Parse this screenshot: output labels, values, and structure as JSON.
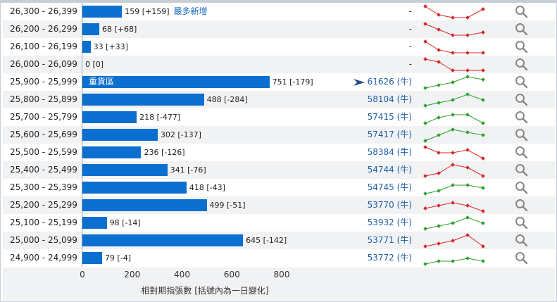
{
  "colors": {
    "bar": "#0b6fcf",
    "up": "#2ca02c",
    "down": "#d62728",
    "strike_link": "#1f5fa6"
  },
  "chart_data": {
    "type": "bar",
    "orientation": "horizontal",
    "categories": [
      "26,300 - 26,399",
      "26,200 - 26,299",
      "26,100 - 26,199",
      "26,000 - 26,099",
      "25,900 - 25,999",
      "25,800 - 25,899",
      "25,700 - 25,799",
      "25,600 - 25,699",
      "25,500 - 25,599",
      "25,400 - 25,499",
      "25,300 - 25,399",
      "25,200 - 25,299",
      "25,100 - 25,199",
      "25,000 - 25,099",
      "24,900 - 24,999"
    ],
    "values": [
      159,
      68,
      33,
      0,
      751,
      488,
      218,
      302,
      236,
      341,
      418,
      499,
      98,
      645,
      79
    ],
    "value_labels": [
      "159 [+159]",
      "68 [+68]",
      "33 [+33]",
      "0 [0]",
      "751 [-179]",
      "488 [-284]",
      "218 [-477]",
      "302 [-137]",
      "236 [-126]",
      "341 [-76]",
      "418 [-43]",
      "499 [-51]",
      "98 [-14]",
      "645 [-142]",
      "79 [-4]"
    ],
    "annotations": {
      "row0_note": "最多新增",
      "row4_inbar": "重貨區"
    },
    "strikes": [
      "-",
      "-",
      "-",
      "-",
      "61626 (牛)",
      "58104 (牛)",
      "57415 (牛)",
      "57417 (牛)",
      "58384 (牛)",
      "54744 (牛)",
      "54745 (牛)",
      "53770 (牛)",
      "53932 (牛)",
      "53771 (牛)",
      "53772 (牛)"
    ],
    "sparklines": [
      {
        "values": [
          5,
          2,
          1,
          1,
          4
        ],
        "color": "down"
      },
      {
        "values": [
          5,
          3,
          1,
          1,
          2
        ],
        "color": "down"
      },
      {
        "values": [
          5,
          2,
          1,
          1,
          1
        ],
        "color": "down"
      },
      {
        "values": [
          5,
          4,
          1,
          1,
          1
        ],
        "color": "down"
      },
      {
        "values": [
          1,
          2,
          3,
          5,
          4
        ],
        "color": "up"
      },
      {
        "values": [
          1,
          2,
          3,
          5,
          3
        ],
        "color": "up"
      },
      {
        "values": [
          1,
          3,
          4,
          4,
          1
        ],
        "color": "up"
      },
      {
        "values": [
          1,
          3,
          5,
          4,
          3
        ],
        "color": "up"
      },
      {
        "values": [
          5,
          3,
          3,
          4,
          1
        ],
        "color": "down"
      },
      {
        "values": [
          1,
          2,
          5,
          4,
          1
        ],
        "color": "down"
      },
      {
        "values": [
          1,
          2,
          4,
          4,
          3
        ],
        "color": "up"
      },
      {
        "values": [
          2,
          3,
          4,
          3,
          1
        ],
        "color": "down"
      },
      {
        "values": [
          1,
          2,
          3,
          5,
          3
        ],
        "color": "up"
      },
      {
        "values": [
          1,
          2,
          3,
          5,
          1
        ],
        "color": "down"
      },
      {
        "values": [
          1,
          2,
          2,
          3,
          2
        ],
        "color": "up"
      }
    ],
    "xlim": [
      0,
      800
    ],
    "xticks": [
      "0",
      "200",
      "400",
      "600",
      "800"
    ],
    "xlabel": "相對期指張數 [括號內為一日變化]",
    "ylabel": "",
    "title": ""
  }
}
